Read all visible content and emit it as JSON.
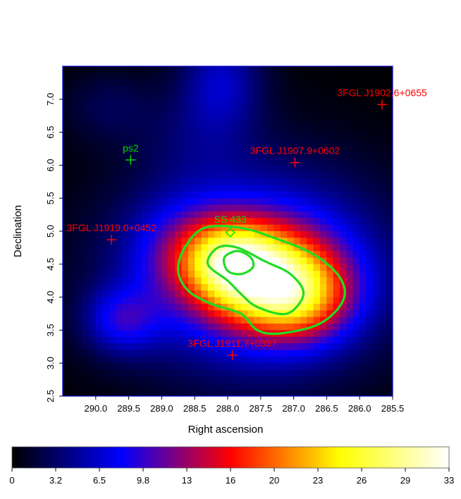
{
  "chart_data": {
    "type": "heatmap",
    "xlabel": "Right ascension",
    "ylabel": "Declination",
    "xlim": [
      290.5,
      285.5
    ],
    "ylim": [
      2.5,
      7.5
    ],
    "x_ticks": [
      "290.0",
      "289.5",
      "289.0",
      "288.5",
      "288.0",
      "287.5",
      "287.0",
      "286.5",
      "286.0",
      "285.5"
    ],
    "y_ticks": [
      "2.5",
      "3.0",
      "3.5",
      "4.0",
      "4.5",
      "5.0",
      "5.5",
      "6.0",
      "6.5",
      "7.0"
    ],
    "colorbar_ticks": [
      "0",
      "3.2",
      "6.5",
      "9.8",
      "13",
      "16",
      "20",
      "23",
      "26",
      "29",
      "33"
    ],
    "colorbar_range": [
      0,
      33
    ],
    "colormap": [
      "#000000",
      "#0000ff",
      "#ff0000",
      "#ffff00",
      "#ffffff"
    ],
    "blobs": [
      {
        "ra": 287.4,
        "dec": 4.3,
        "amp": 18,
        "sx": 0.75,
        "sy": 0.55
      },
      {
        "ra": 287.9,
        "dec": 4.55,
        "amp": 10,
        "sx": 0.45,
        "sy": 0.4
      },
      {
        "ra": 286.9,
        "dec": 3.95,
        "amp": 9,
        "sx": 0.55,
        "sy": 0.45
      },
      {
        "ra": 288.55,
        "dec": 4.7,
        "amp": 6,
        "sx": 0.6,
        "sy": 0.5
      },
      {
        "ra": 287.6,
        "dec": 4.4,
        "amp": 10,
        "sx": 1.4,
        "sy": 1.1
      },
      {
        "ra": 288.1,
        "dec": 7.3,
        "amp": 6,
        "sx": 0.45,
        "sy": 0.55
      },
      {
        "ra": 289.6,
        "dec": 3.65,
        "amp": 7,
        "sx": 0.4,
        "sy": 0.35
      },
      {
        "ra": 289.8,
        "dec": 6.9,
        "amp": 2.5,
        "sx": 0.5,
        "sy": 0.4
      },
      {
        "ra": 288.5,
        "dec": 6.4,
        "amp": 2,
        "sx": 0.6,
        "sy": 0.5
      }
    ],
    "contours": [
      {
        "level": "outer",
        "points": [
          [
            288.65,
            4.75
          ],
          [
            288.35,
            5.05
          ],
          [
            287.8,
            5.05
          ],
          [
            287.3,
            4.9
          ],
          [
            286.7,
            4.65
          ],
          [
            286.3,
            4.3
          ],
          [
            286.25,
            3.95
          ],
          [
            286.6,
            3.6
          ],
          [
            287.2,
            3.45
          ],
          [
            287.55,
            3.5
          ],
          [
            287.8,
            3.75
          ],
          [
            288.25,
            3.9
          ],
          [
            288.6,
            4.1
          ],
          [
            288.75,
            4.4
          ]
        ]
      },
      {
        "level": "middle",
        "points": [
          [
            288.3,
            4.5
          ],
          [
            288.15,
            4.75
          ],
          [
            287.85,
            4.75
          ],
          [
            287.45,
            4.55
          ],
          [
            287.05,
            4.35
          ],
          [
            286.85,
            4.05
          ],
          [
            287.1,
            3.75
          ],
          [
            287.55,
            3.85
          ],
          [
            287.8,
            4.05
          ],
          [
            288.0,
            4.25
          ]
        ]
      },
      {
        "level": "inner",
        "points": [
          [
            288.05,
            4.6
          ],
          [
            287.85,
            4.7
          ],
          [
            287.65,
            4.6
          ],
          [
            287.62,
            4.45
          ],
          [
            287.8,
            4.35
          ],
          [
            288.0,
            4.4
          ]
        ]
      }
    ],
    "sources": [
      {
        "label": "3FGL J1902.6+0655",
        "ra": 285.66,
        "dec": 6.92,
        "color": "#ff0000"
      },
      {
        "label": "3FGL J1907.9+0602",
        "ra": 286.98,
        "dec": 6.04,
        "color": "#ff0000"
      },
      {
        "label": "3FGL J1919.0+0452",
        "ra": 289.76,
        "dec": 4.87,
        "color": "#ff0000"
      },
      {
        "label": "3FGL J1911.7+0307",
        "ra": 287.93,
        "dec": 3.12,
        "color": "#ff0000"
      },
      {
        "label": "ps2",
        "ra": 289.47,
        "dec": 6.08,
        "color": "#00dd00"
      }
    ],
    "ss433": {
      "label": "SS 433",
      "ra": 287.96,
      "dec": 4.98,
      "color": "#00dd00"
    }
  }
}
